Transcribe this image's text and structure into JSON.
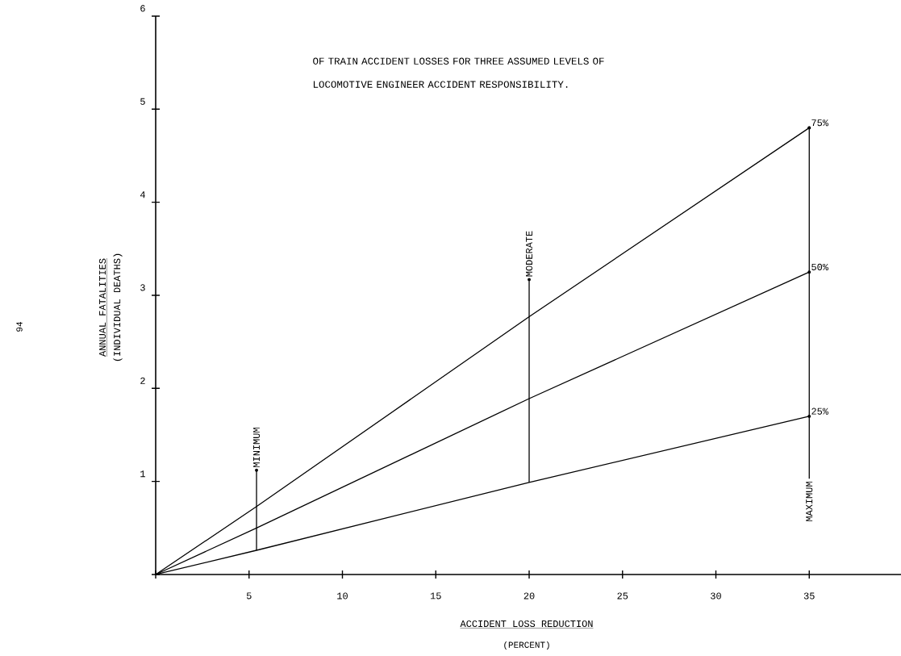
{
  "chart_data": {
    "type": "line",
    "title": "OF TRAIN ACCIDENT LOSSES FOR THREE ASSUMED LEVELS OF LOCOMOTIVE ENGINEER ACCIDENT RESPONSIBILITY.",
    "xlabel": "ACCIDENT LOSS REDUCTION",
    "ylabel": "ANNUAL FATALITIES",
    "annotations": [
      "(PERCENT)",
      "(INDIVIDUAL DEATHS)",
      "94"
    ],
    "xlim": [
      0,
      40
    ],
    "ylim": [
      0,
      6
    ],
    "xticks": [
      {
        "value": 0,
        "label": null
      },
      5,
      10,
      15,
      20,
      25,
      30,
      35
    ],
    "yticks": [
      {
        "value": 0,
        "label": null
      },
      1,
      2,
      3,
      4,
      5,
      6
    ],
    "series": [
      {
        "name": "75%",
        "color": "#000000",
        "x": [
          0,
          5.4,
          20,
          35
        ],
        "values": [
          0,
          0.73,
          2.77,
          4.8
        ]
      },
      {
        "name": "50%",
        "color": "#000000",
        "x": [
          0,
          5.4,
          20,
          35
        ],
        "values": [
          0,
          0.5,
          1.89,
          3.25
        ]
      },
      {
        "name": "25%",
        "color": "#000000",
        "x": [
          0,
          5.4,
          20,
          35
        ],
        "values": [
          0,
          0.26,
          0.99,
          1.7
        ]
      },
      {
        "name": "MINIMUM",
        "color": "#000000",
        "x": [
          5.4,
          5.4
        ],
        "values": [
          0.26,
          1.12
        ]
      },
      {
        "name": "MODERATE",
        "color": "#000000",
        "x": [
          20,
          20
        ],
        "values": [
          0.99,
          3.17
        ]
      },
      {
        "name": "MAXIMUM",
        "color": "#000000",
        "x": [
          35,
          35
        ],
        "values": [
          1.03,
          4.8
        ]
      }
    ]
  }
}
